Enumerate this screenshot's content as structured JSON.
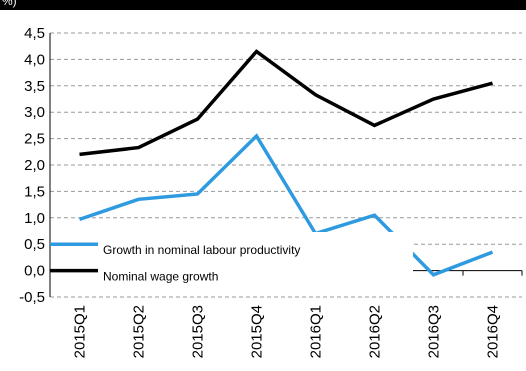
{
  "header": {
    "unit_fragment": "%)"
  },
  "chart_data": {
    "type": "line",
    "title": "",
    "xlabel": "",
    "ylabel": "",
    "categories": [
      "2015Q1",
      "2015Q2",
      "2015Q3",
      "2015Q4",
      "2016Q1",
      "2016Q2",
      "2016Q3",
      "2016Q4"
    ],
    "ylim": [
      -0.5,
      4.5
    ],
    "yticks": [
      "4,5",
      "4,0",
      "3,5",
      "3,0",
      "2,5",
      "2,0",
      "1,5",
      "1,0",
      "0,5",
      "0,0",
      "-0,5"
    ],
    "ytick_values": [
      4.5,
      4.0,
      3.5,
      3.0,
      2.5,
      2.0,
      1.5,
      1.0,
      0.5,
      0.0,
      -0.5
    ],
    "grid": true,
    "legend_position": "bottom-left",
    "series": [
      {
        "name": "Growth in nominal labour productivity",
        "color": "#2e9ae0",
        "values": [
          0.97,
          1.35,
          1.45,
          2.55,
          0.7,
          1.05,
          -0.08,
          0.35
        ]
      },
      {
        "name": "Nominal wage growth",
        "color": "#000000",
        "values": [
          2.2,
          2.33,
          2.87,
          4.15,
          3.33,
          2.75,
          3.25,
          3.55
        ]
      }
    ]
  }
}
